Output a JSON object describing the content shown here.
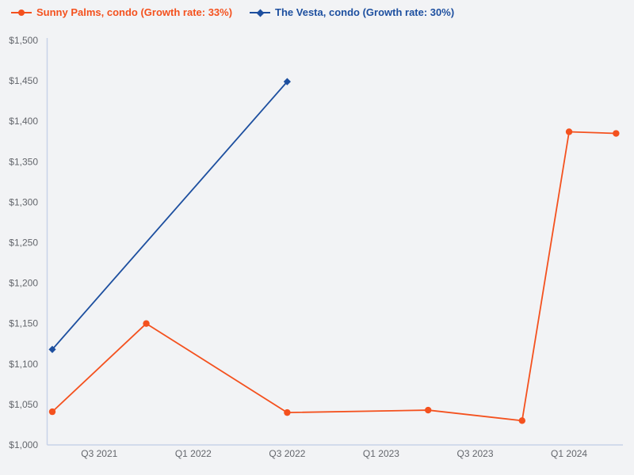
{
  "colors": {
    "background": "#f2f3f5",
    "axis_line": "#c8d3e8",
    "tick_text": "#63666c",
    "series_orange": "#f4511e",
    "series_blue": "#1d4f9f"
  },
  "chart_data": {
    "type": "line",
    "title": "",
    "xlabel": "",
    "ylabel": "",
    "grid": false,
    "legend_position": "top-left",
    "ylim": [
      1000,
      1500
    ],
    "y_tick_step": 50,
    "y_tick_labels": [
      "$1,000",
      "$1,050",
      "$1,100",
      "$1,150",
      "$1,200",
      "$1,250",
      "$1,300",
      "$1,350",
      "$1,400",
      "$1,450",
      "$1,500"
    ],
    "x_domain": [
      "Q2 2021",
      "Q3 2021",
      "Q4 2021",
      "Q1 2022",
      "Q2 2022",
      "Q3 2022",
      "Q4 2022",
      "Q1 2023",
      "Q2 2023",
      "Q3 2023",
      "Q4 2023",
      "Q1 2024",
      "Q2 2024"
    ],
    "x_tick_labels": [
      "Q3 2021",
      "Q1 2022",
      "Q3 2022",
      "Q1 2023",
      "Q3 2023",
      "Q1 2024"
    ],
    "series": [
      {
        "name": "Sunny Palms, condo (Growth rate: 33%)",
        "color": "#f4511e",
        "marker": "circle",
        "growth_rate": "33%",
        "points": [
          {
            "x": "Q2 2021",
            "y": 1041
          },
          {
            "x": "Q4 2021",
            "y": 1150
          },
          {
            "x": "Q3 2022",
            "y": 1040
          },
          {
            "x": "Q2 2023",
            "y": 1043
          },
          {
            "x": "Q4 2023",
            "y": 1030
          },
          {
            "x": "Q1 2024",
            "y": 1387
          },
          {
            "x": "Q2 2024",
            "y": 1385
          }
        ]
      },
      {
        "name": "The Vesta, condo (Growth rate: 30%)",
        "color": "#1d4f9f",
        "marker": "diamond",
        "growth_rate": "30%",
        "points": [
          {
            "x": "Q2 2021",
            "y": 1118
          },
          {
            "x": "Q3 2022",
            "y": 1449
          }
        ]
      }
    ]
  }
}
